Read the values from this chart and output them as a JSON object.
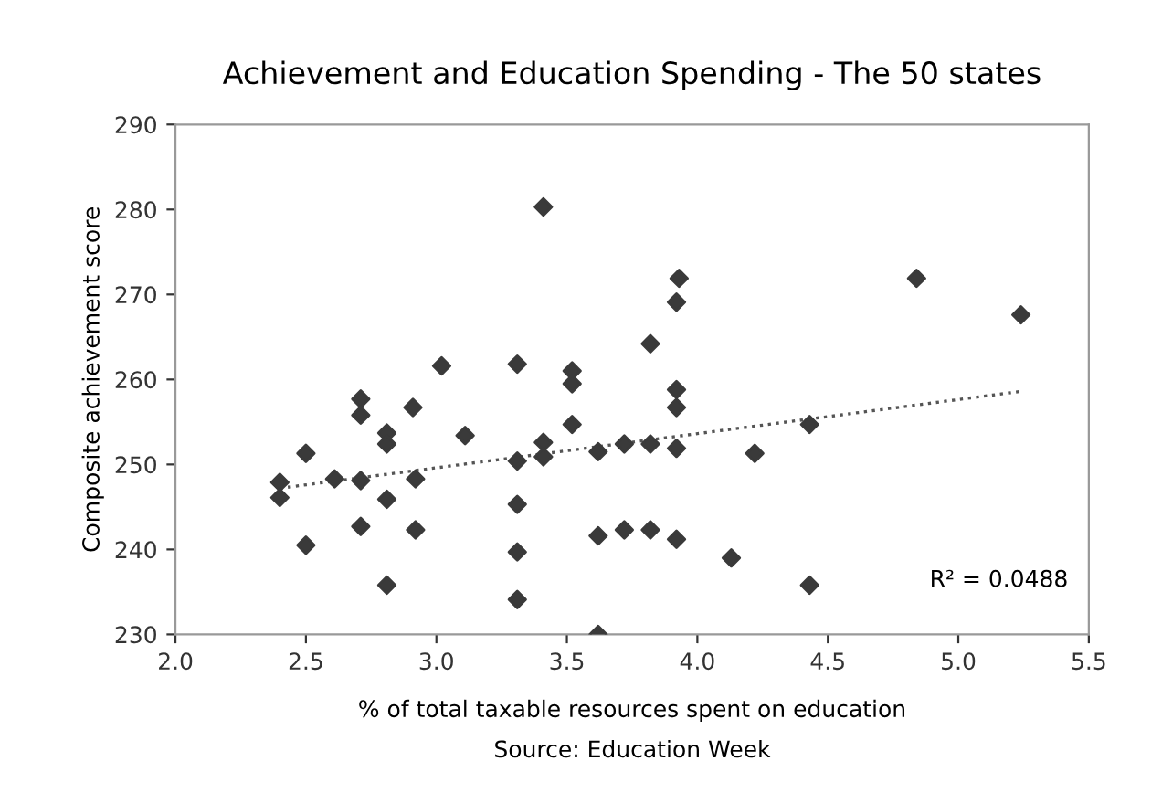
{
  "chart_data": {
    "type": "scatter",
    "title": "Achievement and Education Spending - The 50 states",
    "xlabel": "% of total taxable resources spent on education",
    "ylabel": "Composite achievement score",
    "annotations": [
      "Source: Education Week",
      "R² = 0.0488"
    ],
    "xlim": [
      2.0,
      5.5
    ],
    "xticks": [
      {
        "value": 2.0,
        "label": "2.0"
      },
      2.5,
      {
        "value": 3.0,
        "label": "3.0"
      },
      3.5,
      {
        "value": 4.0,
        "label": "4.0"
      },
      4.5,
      {
        "value": 5.0,
        "label": "5.0"
      },
      5.5
    ],
    "ylim": [
      230,
      290
    ],
    "yticks": [
      230,
      240,
      250,
      260,
      270,
      280,
      290
    ],
    "marker": "diamond",
    "grid": false,
    "legend": false,
    "series": [
      {
        "color": "#3a3a3a",
        "x": [
          3.41,
          3.02,
          3.31,
          3.52,
          3.52,
          2.71,
          2.71,
          2.91,
          2.81,
          2.81,
          3.11,
          3.52,
          2.5,
          2.4,
          2.4,
          2.61,
          2.71,
          2.92,
          3.31,
          3.41,
          3.41,
          2.81,
          3.31,
          2.71,
          2.92,
          2.5,
          3.31,
          2.81,
          3.31,
          3.92,
          3.93,
          4.84,
          5.24,
          3.82,
          3.92,
          3.92,
          3.62,
          3.72,
          3.82,
          3.92,
          4.22,
          4.43,
          3.62,
          3.72,
          3.82,
          3.92,
          4.13,
          4.43,
          3.62
        ],
        "values": [
          280.3,
          261.6,
          261.8,
          261.0,
          259.5,
          257.7,
          255.8,
          256.7,
          253.7,
          252.4,
          253.4,
          254.7,
          251.3,
          247.9,
          246.1,
          248.3,
          248.1,
          248.3,
          250.4,
          252.6,
          250.9,
          245.9,
          245.3,
          242.7,
          242.3,
          240.5,
          239.7,
          235.8,
          234.1,
          269.1,
          271.9,
          271.9,
          267.6,
          264.2,
          258.8,
          256.7,
          251.5,
          252.4,
          252.4,
          251.9,
          251.3,
          254.7,
          241.6,
          242.3,
          242.3,
          241.2,
          239.0,
          235.8,
          230.0
        ]
      },
      {
        "type": "line",
        "color": "#555555",
        "line_style": "dotted",
        "marker": "none",
        "x": [
          2.4,
          5.24
        ],
        "values": [
          247.2,
          258.6
        ]
      }
    ]
  }
}
